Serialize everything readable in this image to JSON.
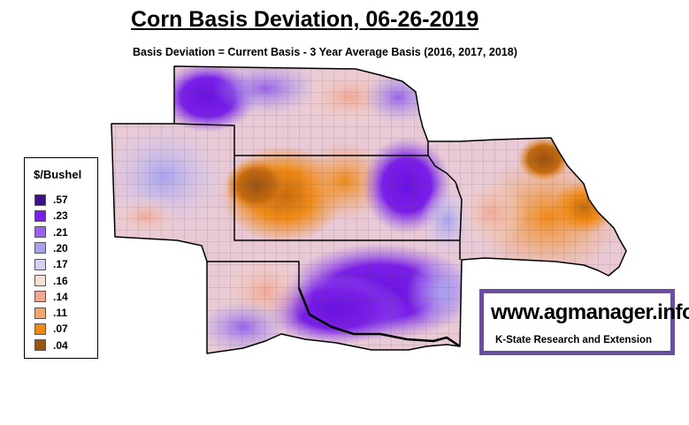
{
  "title": "Corn Basis Deviation, 06-26-2019",
  "subtitle": "Basis Deviation = Current Basis - 3 Year Average Basis (2016, 2017, 2018)",
  "legend": {
    "title": "$/Bushel",
    "items": [
      {
        "label": ".57",
        "color": "#3b0e8a"
      },
      {
        "label": ".23",
        "color": "#7a1fe8"
      },
      {
        "label": ".21",
        "color": "#9a62ea"
      },
      {
        "label": ".20",
        "color": "#a7a2ee"
      },
      {
        "label": ".17",
        "color": "#d6cff2"
      },
      {
        "label": ".16",
        "color": "#f4e0d6"
      },
      {
        "label": ".14",
        "color": "#f2a795"
      },
      {
        "label": ".11",
        "color": "#f3a66a"
      },
      {
        "label": ".07",
        "color": "#f08a17"
      },
      {
        "label": ".04",
        "color": "#9a5312"
      }
    ]
  },
  "badge": {
    "url": "www.agmanager.info",
    "org": "K-State Research and Extension"
  }
}
